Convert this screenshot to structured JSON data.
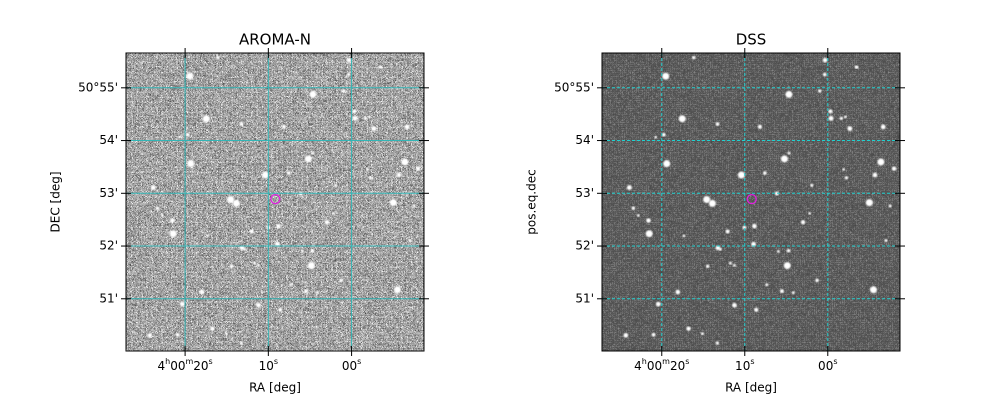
{
  "chart_data": [
    {
      "type": "image",
      "title": "AROMA-N",
      "xlabel": "RA [deg]",
      "ylabel": "DEC [deg]",
      "xlim": [
        27.1,
        -8.7
      ],
      "ylim": [
        50.01,
        55.66
      ],
      "xticks": [
        {
          "value": 20,
          "label": "4h00m20s"
        },
        {
          "value": 10,
          "label": "10s"
        },
        {
          "value": 0,
          "label": "00s"
        }
      ],
      "yticks": [
        {
          "value": 55,
          "label": "50°55'"
        },
        {
          "value": 54,
          "label": "54'"
        },
        {
          "value": 53,
          "label": "53'"
        },
        {
          "value": 52,
          "label": "52'"
        },
        {
          "value": 51,
          "label": "51'"
        }
      ],
      "grid": true,
      "grid_style": "solid",
      "grid_color": "#33b5b5",
      "target": {
        "x": 9.16,
        "y": 52.89,
        "color": "#e020e0"
      }
    },
    {
      "type": "image",
      "title": "DSS",
      "xlabel": "RA [deg]",
      "ylabel": "pos.eq.dec",
      "xlim": [
        27.2,
        -8.7
      ],
      "ylim": [
        50.01,
        55.66
      ],
      "xticks": [
        {
          "value": 20,
          "label": "4h00m20s"
        },
        {
          "value": 10,
          "label": "10s"
        },
        {
          "value": 0,
          "label": "00s"
        }
      ],
      "yticks": [
        {
          "value": 55,
          "label": "50°55'"
        },
        {
          "value": 54,
          "label": "54'"
        },
        {
          "value": 53,
          "label": "53'"
        },
        {
          "value": 52,
          "label": "52'"
        },
        {
          "value": 51,
          "label": "51'"
        }
      ],
      "grid": true,
      "grid_style": "dashed",
      "grid_color": "#22d0d0",
      "target": {
        "x": 9.16,
        "y": 52.89,
        "color": "#e020e0"
      }
    }
  ]
}
